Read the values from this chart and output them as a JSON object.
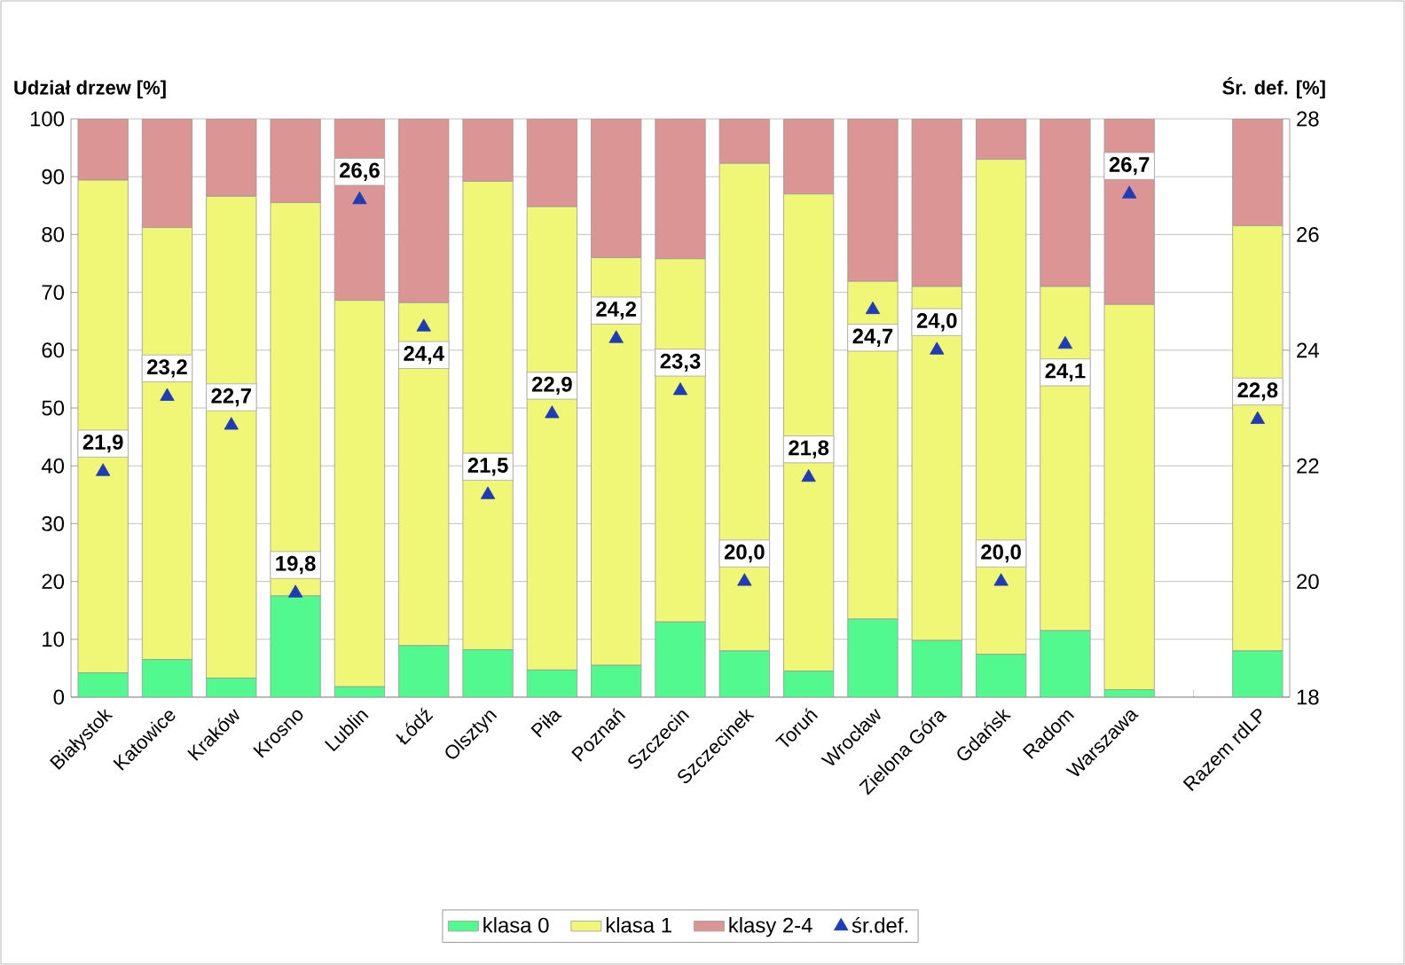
{
  "chart_data": {
    "type": "bar",
    "stacked": true,
    "ylabel": "Udział drzew [%]",
    "y2label": "Śr. def. [%]",
    "categories": [
      "Białystok",
      "Katowice",
      "Kraków",
      "Krosno",
      "Lublin",
      "Łódź",
      "Olsztyn",
      "Piła",
      "Poznań",
      "Szczecin",
      "Szczecinek",
      "Toruń",
      "Wrocław",
      "Zielona Góra",
      "Gdańsk",
      "Radom",
      "Warszawa",
      null,
      "Razem rdLP"
    ],
    "series": [
      {
        "name": "klasa 0",
        "color": "#52f98e",
        "values": [
          4.2,
          6.5,
          3.3,
          17.5,
          1.8,
          8.9,
          8.2,
          4.7,
          5.5,
          13.0,
          8.0,
          4.5,
          13.5,
          9.8,
          7.4,
          11.5,
          1.3,
          null,
          8.0
        ]
      },
      {
        "name": "klasa 1",
        "color": "#f0f777",
        "values": [
          85.2,
          74.7,
          83.3,
          68.0,
          66.8,
          59.3,
          81.0,
          80.1,
          70.5,
          62.8,
          84.3,
          82.5,
          58.4,
          61.2,
          85.6,
          59.5,
          66.6,
          null,
          73.5
        ]
      },
      {
        "name": "klasy 2-4",
        "color": "#da9594",
        "values": [
          10.6,
          18.8,
          13.4,
          14.5,
          31.4,
          31.8,
          10.8,
          15.2,
          24.0,
          24.2,
          7.7,
          13.0,
          28.1,
          29.0,
          7.0,
          29.0,
          32.1,
          null,
          18.5
        ]
      },
      {
        "name": "śr.def.",
        "type": "scatter",
        "axis": "y2",
        "color": "#1f3cb8",
        "values": [
          21.9,
          23.2,
          22.7,
          19.8,
          26.6,
          24.4,
          21.5,
          22.9,
          24.2,
          23.3,
          20.0,
          21.8,
          24.7,
          24.0,
          20.0,
          24.1,
          26.7,
          null,
          22.8
        ],
        "value_labels": [
          "21,9",
          "23,2",
          "22,7",
          "19,8",
          "26,6",
          "24,4",
          "21,5",
          "22,9",
          "24,2",
          "23,3",
          "20,0",
          "21,8",
          "24,7",
          "24,0",
          "20,0",
          "24,1",
          "26,7",
          null,
          "22,8"
        ]
      }
    ],
    "ylim": [
      0,
      100
    ],
    "yticks": [
      0,
      10,
      20,
      30,
      40,
      50,
      60,
      70,
      80,
      90,
      100
    ],
    "y2lim": [
      18,
      28
    ],
    "y2ticks": [
      18,
      20,
      22,
      24,
      26,
      28
    ],
    "grid": "y",
    "legend": "bottom",
    "marker": "triangle"
  }
}
